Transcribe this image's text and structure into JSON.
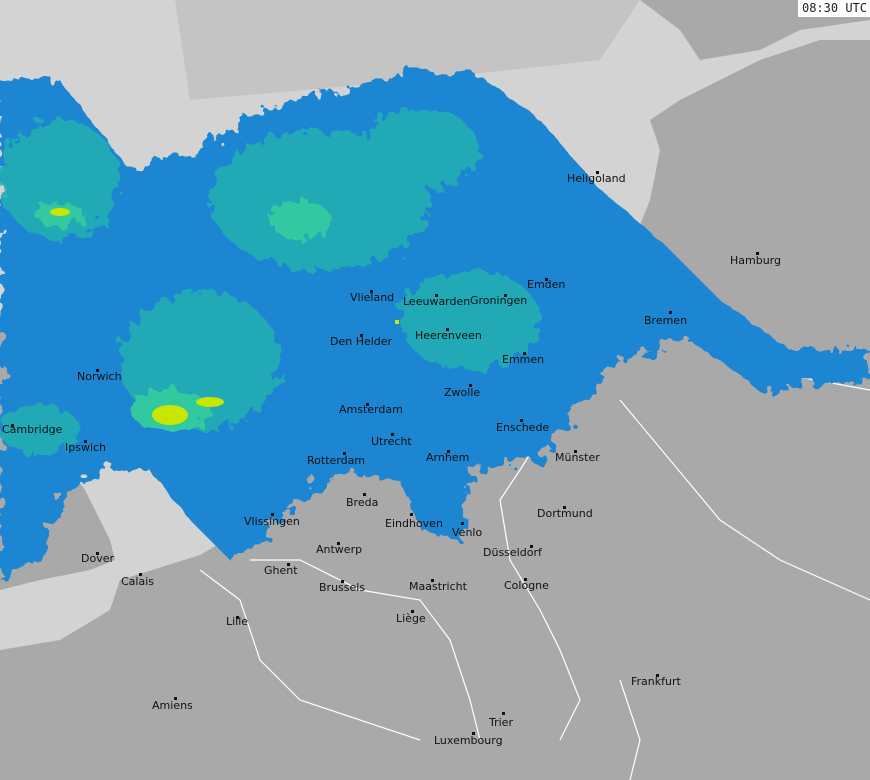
{
  "timestamp": "08:30 UTC",
  "colors": {
    "sea": "#d3d3d3",
    "land": "#a9a9a9",
    "out_of_range": "#c4c4c4",
    "radar_light": "#1e86d2",
    "radar_medium": "#22aeb4",
    "radar_strong": "#30c8a0",
    "radar_heavy": "#c8e600",
    "border": "#8a6f6f",
    "border_white": "#ffffff"
  },
  "cities": [
    {
      "name": "Heligoland"
    },
    {
      "name": "Hamburg"
    },
    {
      "name": "Emden"
    },
    {
      "name": "Bremen"
    },
    {
      "name": "Vlieland"
    },
    {
      "name": "Leeuwarden"
    },
    {
      "name": "Groningen"
    },
    {
      "name": "Den Helder"
    },
    {
      "name": "Heerenveen"
    },
    {
      "name": "Emmen"
    },
    {
      "name": "Norwich"
    },
    {
      "name": "Zwolle"
    },
    {
      "name": "Amsterdam"
    },
    {
      "name": "Cambridge"
    },
    {
      "name": "Enschede"
    },
    {
      "name": "Ipswich"
    },
    {
      "name": "Utrecht"
    },
    {
      "name": "Münster"
    },
    {
      "name": "Rotterdam"
    },
    {
      "name": "Arnhem"
    },
    {
      "name": "Breda"
    },
    {
      "name": "Dortmund"
    },
    {
      "name": "Vlissingen"
    },
    {
      "name": "Eindhoven"
    },
    {
      "name": "Venlo"
    },
    {
      "name": "Antwerp"
    },
    {
      "name": "Düsseldorf"
    },
    {
      "name": "Dover"
    },
    {
      "name": "Ghent"
    },
    {
      "name": "Calais"
    },
    {
      "name": "Brussels"
    },
    {
      "name": "Maastricht"
    },
    {
      "name": "Cologne"
    },
    {
      "name": "Lille"
    },
    {
      "name": "Liège"
    },
    {
      "name": "Frankfurt"
    },
    {
      "name": "Amiens"
    },
    {
      "name": "Trier"
    },
    {
      "name": "Luxembourg"
    }
  ]
}
